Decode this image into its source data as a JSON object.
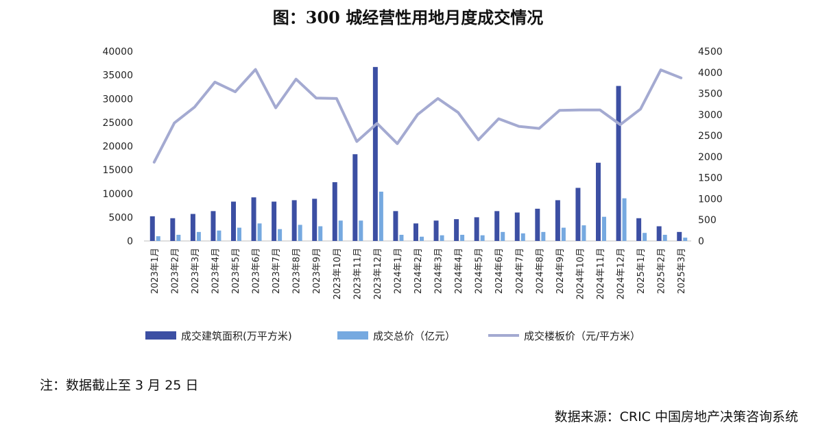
{
  "title": "图：300 城经营性用地月度成交情况",
  "note": "注：数据截止至 3 月 25 日",
  "source": "数据来源：CRIC 中国房地产决策咨询系统",
  "chart_data": {
    "type": "bar",
    "categories": [
      "2023年1月",
      "2023年2月",
      "2023年3月",
      "2023年4月",
      "2023年5月",
      "2023年6月",
      "2023年7月",
      "2023年8月",
      "2023年9月",
      "2023年10月",
      "2023年11月",
      "2023年12月",
      "2024年1月",
      "2024年2月",
      "2024年3月",
      "2024年4月",
      "2024年5月",
      "2024年6月",
      "2024年7月",
      "2024年8月",
      "2024年9月",
      "2024年10月",
      "2024年11月",
      "2024年12月",
      "2025年1月",
      "2025年2月",
      "2025年3月"
    ],
    "series": [
      {
        "name": "成交建筑面积(万平方米)",
        "type": "bar",
        "axis": "left",
        "color": "#3c4fa3",
        "values": [
          5200,
          4800,
          5700,
          6300,
          8300,
          9200,
          8300,
          8600,
          8900,
          12400,
          18300,
          36700,
          6300,
          3700,
          4300,
          4600,
          5000,
          6300,
          6000,
          6800,
          8600,
          11200,
          16500,
          32700,
          4800,
          3100,
          1900
        ]
      },
      {
        "name": "成交总价（亿元）",
        "type": "bar",
        "axis": "left",
        "color": "#76a9e0",
        "values": [
          1000,
          1300,
          1900,
          2200,
          2800,
          3700,
          2500,
          3400,
          3100,
          4300,
          4300,
          10400,
          1300,
          900,
          1200,
          1300,
          1200,
          1900,
          1600,
          1900,
          2800,
          3300,
          5100,
          9000,
          1700,
          1300,
          700
        ]
      },
      {
        "name": "成交楼板价（元/平方米）",
        "type": "line",
        "axis": "right",
        "color": "#a4aad1",
        "values": [
          1870,
          2800,
          3180,
          3770,
          3540,
          4070,
          3160,
          3840,
          3390,
          3380,
          2360,
          2790,
          2310,
          3000,
          3380,
          3050,
          2400,
          2900,
          2720,
          2670,
          3100,
          3110,
          3110,
          2760,
          3130,
          4060,
          3870
        ]
      }
    ],
    "ylim_left": [
      0,
      40000
    ],
    "yticks_left": [
      0,
      5000,
      10000,
      15000,
      20000,
      25000,
      30000,
      35000,
      40000
    ],
    "ylim_right": [
      0,
      4500
    ],
    "yticks_right": [
      0,
      500,
      1000,
      1500,
      2000,
      2500,
      3000,
      3500,
      4000,
      4500
    ],
    "grid": false,
    "legend_position": "bottom"
  }
}
